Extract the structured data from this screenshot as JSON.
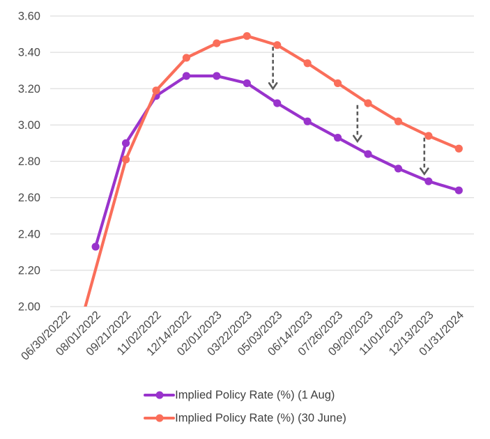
{
  "chart_data": {
    "type": "line",
    "title": "",
    "categories": [
      "06/30/20222",
      "08/01/2022",
      "09/21/2022",
      "11/02/2022",
      "12/14/2022",
      "02/01/2023",
      "03/22/2023",
      "05/03/2023",
      "06/14/2023",
      "07/26/2023",
      "09/20/2023",
      "11/01/2023",
      "12/13/2023",
      "01/31/2024"
    ],
    "series": [
      {
        "name": "Implied Policy Rate (%) (1 Aug)",
        "color": "#9933CC",
        "values": [
          null,
          2.33,
          2.9,
          3.16,
          3.27,
          3.27,
          3.23,
          3.12,
          3.02,
          2.93,
          2.84,
          2.76,
          2.69,
          2.64
        ]
      },
      {
        "name": "Implied Policy Rate (%) (30 June)",
        "color": "#FA6E5A",
        "values": [
          1.6,
          null,
          2.81,
          3.19,
          3.37,
          3.45,
          3.49,
          3.44,
          3.34,
          3.23,
          3.12,
          3.02,
          2.94,
          2.87
        ]
      }
    ],
    "y_axis": {
      "min": 2.0,
      "max": 3.6,
      "step": 0.2,
      "tick_labels": [
        "2.00",
        "2.20",
        "2.40",
        "2.60",
        "2.80",
        "3.00",
        "3.20",
        "3.40",
        "3.60"
      ]
    },
    "x_axis": {
      "label_rotation_deg": 45
    },
    "grid": "horizontal",
    "legend_position": "bottom",
    "annotations": {
      "style": "dashed-down-arrow",
      "color": "#5A5A5A",
      "arrows": [
        {
          "x_index": 6.86,
          "from_value": 3.43,
          "to_value": 3.2
        },
        {
          "x_index": 9.65,
          "from_value": 3.11,
          "to_value": 2.91
        },
        {
          "x_index": 11.86,
          "from_value": 2.93,
          "to_value": 2.73
        }
      ]
    }
  },
  "colors": {
    "gridline": "#DEDEDE",
    "axis_text": "#4A4A4A",
    "legend_text": "#3F3F3F",
    "background": "#FFFFFF"
  }
}
